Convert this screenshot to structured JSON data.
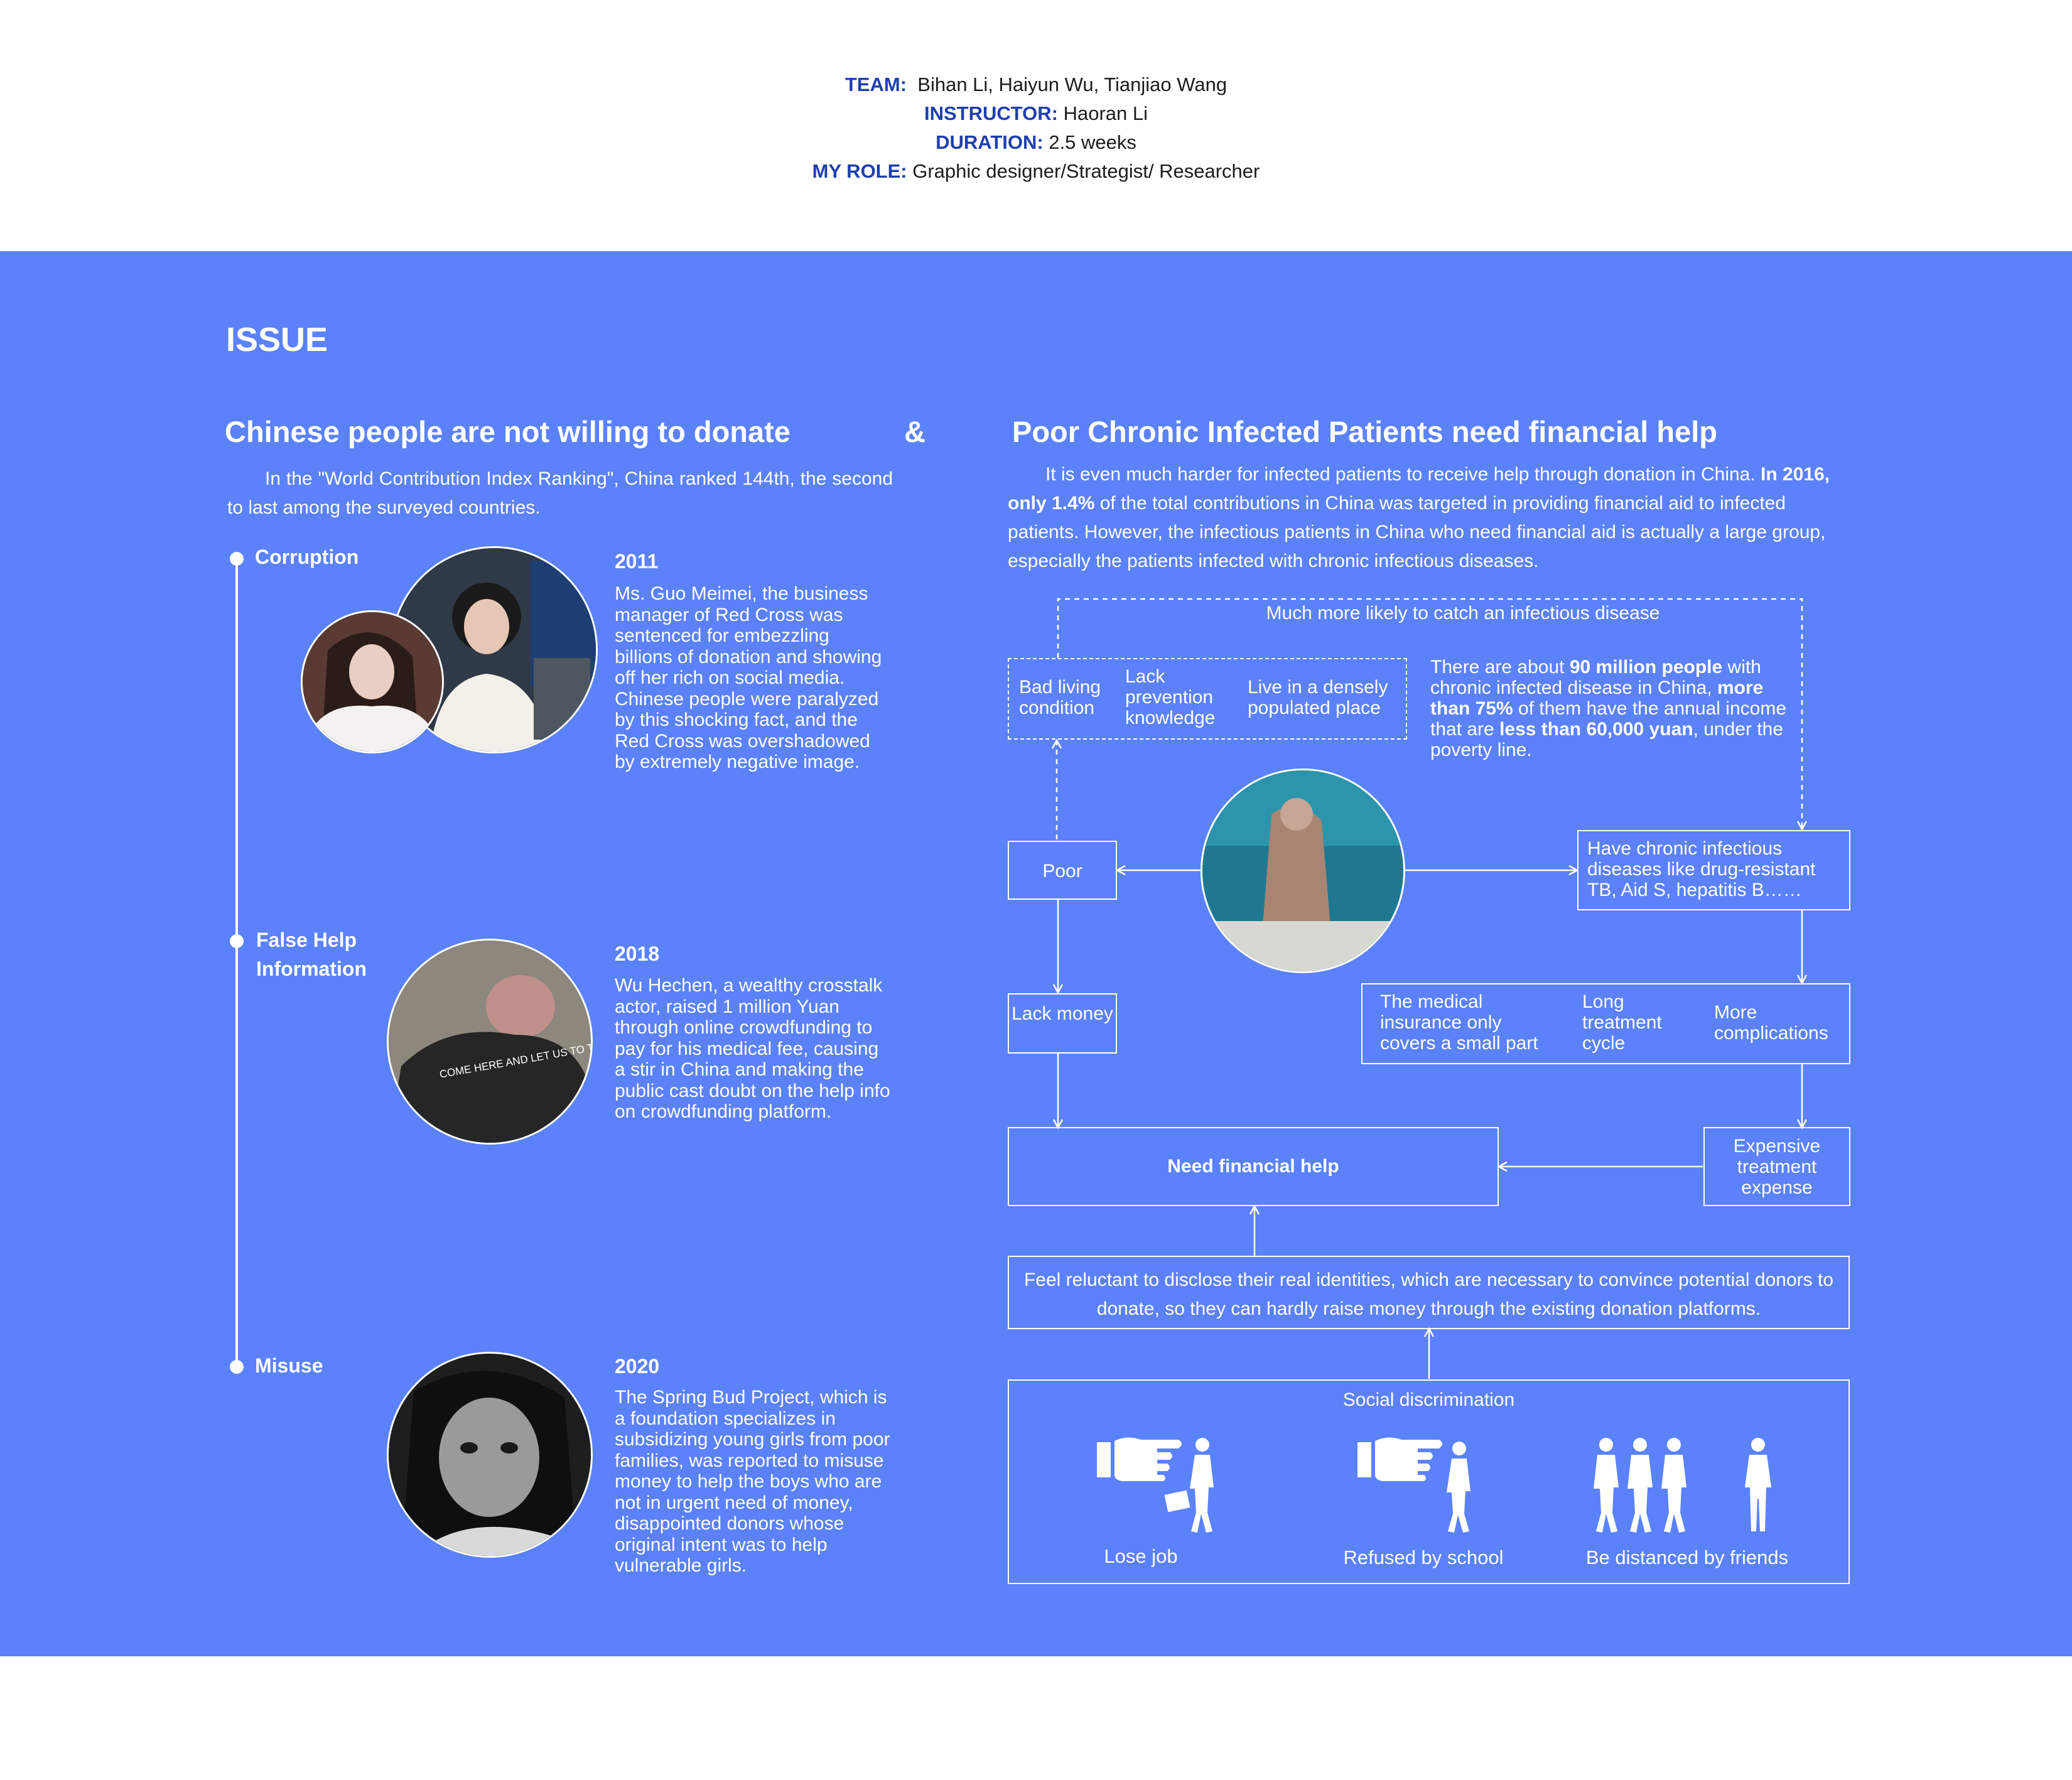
{
  "credits": {
    "team_label": "TEAM:",
    "team_value": "Bihan Li, Haiyun Wu, Tianjiao Wang",
    "instructor_label": "INSTRUCTOR:",
    "instructor_value": "Haoran Li",
    "duration_label": "DURATION:",
    "duration_value": "2.5 weeks",
    "role_label": "MY ROLE:",
    "role_value": "Graphic designer/Strategist/ Researcher"
  },
  "section_title": "ISSUE",
  "left": {
    "heading": "Chinese people are not willing to donate",
    "ampersand": "&",
    "intro": "In the \"World Contribution Index Ranking\", China ranked 144th, the second to last among the surveyed countries.",
    "timeline": [
      {
        "label": "Corruption",
        "year": "2011",
        "text": "Ms. Guo Meimei, the business manager of Red Cross was sentenced for embezzling billions of donation and showing off her rich on social media. Chinese people were paralyzed by this shocking fact, and the Red Cross was overshadowed  by extremely negative image."
      },
      {
        "label_line1": "False Help",
        "label_line2": "Information",
        "year": "2018",
        "text": "Wu Hechen, a wealthy crosstalk actor, raised 1 million Yuan through online crowdfunding to pay for his medical fee, causing a stir in China and making the public cast doubt on the help info on crowdfunding platform.",
        "photo_shirt_text": "COME HERE AND LET US TO THR"
      },
      {
        "label": "Misuse",
        "year": "2020",
        "text": "The Spring Bud Project, which is a foundation specializes in subsidizing young girls from poor families, was reported to misuse money to help the boys who are not in urgent need of money, disappointed donors whose original intent was to help vulnerable girls."
      }
    ]
  },
  "right": {
    "heading": "Poor Chronic Infected Patients need financial help",
    "intro_1": "It is even much harder for infected patients to receive help through donation in China.",
    "intro_bold": "In 2016, only 1.4%",
    "intro_2": "of the total contributions in China was targeted in providing financial aid to infected patients. However, the infectious patients in China who need financial aid is actually a large group, especially the patients infected with chronic infectious diseases.",
    "diagram": {
      "top_dashed_label": "Much more likely to catch an infectious disease",
      "cause_1": "Bad living condition",
      "cause_2": "Lack prevention knowledge",
      "cause_3": "Live in a densely populated place",
      "stat": {
        "t1": "There are about ",
        "b1": "90 million people",
        "t2": " with chronic infected disease in China, ",
        "b2": "more than 75%",
        "t3": " of them have the annual income that are ",
        "b3": "less than 60,000 yuan",
        "t4": ", under the poverty line."
      },
      "poor": "Poor",
      "chronic": "Have chronic infectious diseases like drug-resistant TB, Aid S, hepatitis B……",
      "lack_money": "Lack money",
      "insurance": "The medical insurance only covers a small part",
      "long_treatment": "Long treatment cycle",
      "complications": "More complications",
      "need_help": "Need financial help",
      "expensive": "Expensive treatment expense",
      "reluctant": "Feel reluctant to disclose their real identities, which are necessary to convince potential donors to donate, so they can hardly raise money through the existing donation platforms.",
      "discrimination_title": "Social discrimination",
      "discrimination_items": [
        "Lose job",
        "Refused by school",
        "Be distanced by friends"
      ]
    }
  }
}
